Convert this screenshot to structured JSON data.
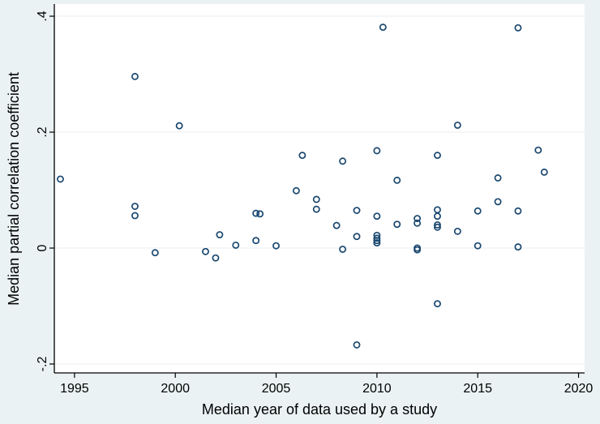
{
  "chart_data": {
    "type": "scatter",
    "title": "",
    "xlabel": "Median year of data used by a study",
    "ylabel": "Median partial correlation coefficient",
    "xlim": [
      1994,
      2020.3
    ],
    "ylim": [
      -0.2,
      0.4
    ],
    "x_ticks": [
      1995,
      2000,
      2005,
      2010,
      2015,
      2020
    ],
    "x_tick_labels": [
      "1995",
      "2000",
      "2005",
      "2010",
      "2015",
      "2020"
    ],
    "y_ticks": [
      -0.2,
      0,
      0.2,
      0.4
    ],
    "y_tick_labels": [
      "-.2",
      "0",
      ".2",
      ".4"
    ],
    "grid": "horizontal",
    "colors": {
      "marker": "#1a476f",
      "plot_background": "#ffffff",
      "outer_background": "#eaf2f3",
      "grid": "#e8eef0"
    },
    "points": [
      {
        "x": 1994.3,
        "y": 0.119
      },
      {
        "x": 1998.0,
        "y": 0.296
      },
      {
        "x": 1998.0,
        "y": 0.072
      },
      {
        "x": 1998.0,
        "y": 0.056
      },
      {
        "x": 1999.0,
        "y": -0.008
      },
      {
        "x": 2000.2,
        "y": 0.211
      },
      {
        "x": 2001.5,
        "y": -0.006
      },
      {
        "x": 2002.0,
        "y": -0.017
      },
      {
        "x": 2002.2,
        "y": 0.023
      },
      {
        "x": 2003.0,
        "y": 0.005
      },
      {
        "x": 2004.0,
        "y": 0.06
      },
      {
        "x": 2004.2,
        "y": 0.059
      },
      {
        "x": 2004.0,
        "y": 0.013
      },
      {
        "x": 2005.0,
        "y": 0.004
      },
      {
        "x": 2006.0,
        "y": 0.099
      },
      {
        "x": 2006.3,
        "y": 0.16
      },
      {
        "x": 2007.0,
        "y": 0.084
      },
      {
        "x": 2007.0,
        "y": 0.067
      },
      {
        "x": 2008.0,
        "y": 0.039
      },
      {
        "x": 2008.3,
        "y": 0.15
      },
      {
        "x": 2008.3,
        "y": -0.002
      },
      {
        "x": 2009.0,
        "y": 0.065
      },
      {
        "x": 2009.0,
        "y": 0.02
      },
      {
        "x": 2009.0,
        "y": -0.167
      },
      {
        "x": 2010.0,
        "y": 0.168
      },
      {
        "x": 2010.0,
        "y": 0.055
      },
      {
        "x": 2010.0,
        "y": 0.022
      },
      {
        "x": 2010.0,
        "y": 0.017
      },
      {
        "x": 2010.0,
        "y": 0.013
      },
      {
        "x": 2010.0,
        "y": 0.009
      },
      {
        "x": 2010.3,
        "y": 0.381
      },
      {
        "x": 2011.0,
        "y": 0.117
      },
      {
        "x": 2011.0,
        "y": 0.041
      },
      {
        "x": 2012.0,
        "y": 0.051
      },
      {
        "x": 2012.0,
        "y": 0.043
      },
      {
        "x": 2012.0,
        "y": 0.0
      },
      {
        "x": 2012.0,
        "y": -0.003
      },
      {
        "x": 2013.0,
        "y": 0.16
      },
      {
        "x": 2013.0,
        "y": 0.066
      },
      {
        "x": 2013.0,
        "y": 0.055
      },
      {
        "x": 2013.0,
        "y": 0.04
      },
      {
        "x": 2013.0,
        "y": 0.036
      },
      {
        "x": 2013.0,
        "y": -0.096
      },
      {
        "x": 2014.0,
        "y": 0.212
      },
      {
        "x": 2014.0,
        "y": 0.029
      },
      {
        "x": 2015.0,
        "y": 0.064
      },
      {
        "x": 2015.0,
        "y": 0.004
      },
      {
        "x": 2016.0,
        "y": 0.121
      },
      {
        "x": 2016.0,
        "y": 0.08
      },
      {
        "x": 2017.0,
        "y": 0.38
      },
      {
        "x": 2017.0,
        "y": 0.064
      },
      {
        "x": 2017.0,
        "y": 0.002
      },
      {
        "x": 2018.0,
        "y": 0.169
      },
      {
        "x": 2018.3,
        "y": 0.131
      }
    ]
  }
}
